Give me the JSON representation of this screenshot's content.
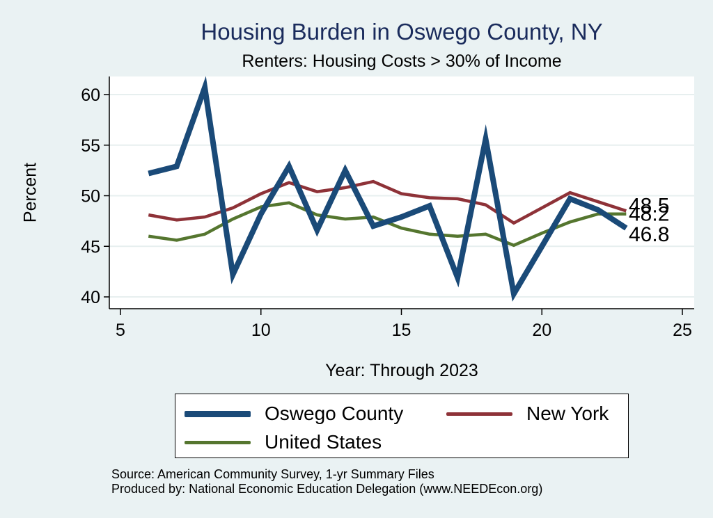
{
  "chart_data": {
    "type": "line",
    "title": "Housing Burden in Oswego County, NY",
    "subtitle": "Renters: Housing Costs > 30% of Income",
    "xlabel": "Year: Through 2023",
    "ylabel": "Percent",
    "xlim": [
      5,
      25
    ],
    "ylim": [
      40,
      61
    ],
    "xticks": [
      5,
      10,
      15,
      20,
      25
    ],
    "yticks": [
      40,
      45,
      50,
      55,
      60
    ],
    "grid": true,
    "legend_position": "bottom",
    "series": [
      {
        "name": "Oswego County",
        "color": "#1a4a78",
        "x": [
          6,
          7,
          8,
          9,
          10,
          11,
          12,
          13,
          14,
          15,
          16,
          17,
          18,
          19,
          20,
          21,
          22,
          23
        ],
        "values": [
          52.2,
          52.9,
          60.7,
          42.2,
          48.2,
          52.9,
          46.6,
          52.5,
          47.0,
          47.9,
          49.0,
          41.9,
          55.6,
          40.3,
          45.0,
          49.7,
          48.6,
          46.8
        ],
        "end_label": "46.8"
      },
      {
        "name": "New York",
        "color": "#8e3238",
        "x": [
          6,
          7,
          8,
          9,
          10,
          11,
          12,
          13,
          14,
          15,
          16,
          17,
          18,
          19,
          20,
          21,
          22,
          23
        ],
        "values": [
          48.1,
          47.6,
          47.9,
          48.8,
          50.2,
          51.3,
          50.4,
          50.8,
          51.4,
          50.2,
          49.8,
          49.7,
          49.1,
          47.3,
          48.8,
          50.3,
          49.4,
          48.5
        ],
        "end_label": "48.5"
      },
      {
        "name": "United States",
        "color": "#55762f",
        "x": [
          6,
          7,
          8,
          9,
          10,
          11,
          12,
          13,
          14,
          15,
          16,
          17,
          18,
          19,
          20,
          21,
          22,
          23
        ],
        "values": [
          46.0,
          45.6,
          46.2,
          47.7,
          48.9,
          49.3,
          48.1,
          47.7,
          47.9,
          46.8,
          46.2,
          46.0,
          46.2,
          45.1,
          46.3,
          47.4,
          48.2,
          48.2
        ],
        "end_label": "48.2"
      }
    ]
  },
  "source": {
    "line1": "Source: American Community Survey, 1-yr Summary Files",
    "line2": "Produced by: National Economic Education Delegation (www.NEEDEcon.org)"
  }
}
